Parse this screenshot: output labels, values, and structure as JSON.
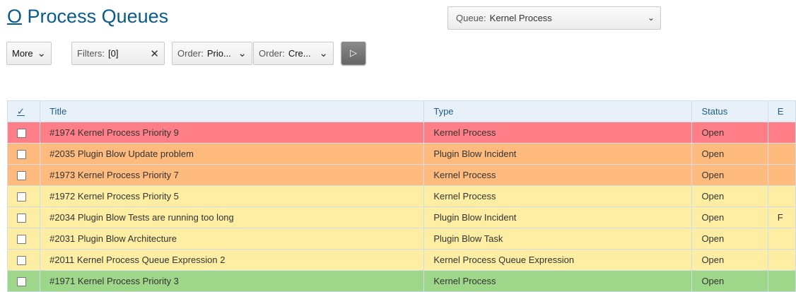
{
  "header": {
    "title_prefix": "O",
    "title": "Process Queues"
  },
  "queue_select": {
    "label": "Queue:",
    "value": "Kernel Process"
  },
  "toolbar": {
    "more": "More",
    "filters_label": "Filters:",
    "filters_value": "[0]",
    "order1_label": "Order:",
    "order1_value": "Prio...",
    "order2_label": "Order:",
    "order2_value": "Cre...",
    "run_icon": "play-icon"
  },
  "table": {
    "columns": [
      "✓",
      "Title",
      "Type",
      "Status",
      "E"
    ],
    "rows": [
      {
        "title": "#1974 Kernel Process Priority 9",
        "type": "Kernel Process",
        "status": "Open",
        "extra": "",
        "color": "#fe7f88"
      },
      {
        "title": "#2035 Plugin Blow Update problem",
        "type": "Plugin Blow Incident",
        "status": "Open",
        "extra": "",
        "color": "#febb7d"
      },
      {
        "title": "#1973 Kernel Process Priority 7",
        "type": "Kernel Process",
        "status": "Open",
        "extra": "",
        "color": "#febb7d"
      },
      {
        "title": "#1972 Kernel Process Priority 5",
        "type": "Kernel Process",
        "status": "Open",
        "extra": "",
        "color": "#fdeea4"
      },
      {
        "title": "#2034 Plugin Blow Tests are running too long",
        "type": "Plugin Blow Incident",
        "status": "Open",
        "extra": "F",
        "color": "#fdeea4"
      },
      {
        "title": "#2031 Plugin Blow Architecture",
        "type": "Plugin Blow Task",
        "status": "Open",
        "extra": "",
        "color": "#fdeea4"
      },
      {
        "title": "#2011 Kernel Process Queue Expression 2",
        "type": "Kernel Process Queue Expression",
        "status": "Open",
        "extra": "",
        "color": "#fdeea4"
      },
      {
        "title": "#1971 Kernel Process Priority 3",
        "type": "Kernel Process",
        "status": "Open",
        "extra": "",
        "color": "#9ed68a"
      }
    ]
  }
}
